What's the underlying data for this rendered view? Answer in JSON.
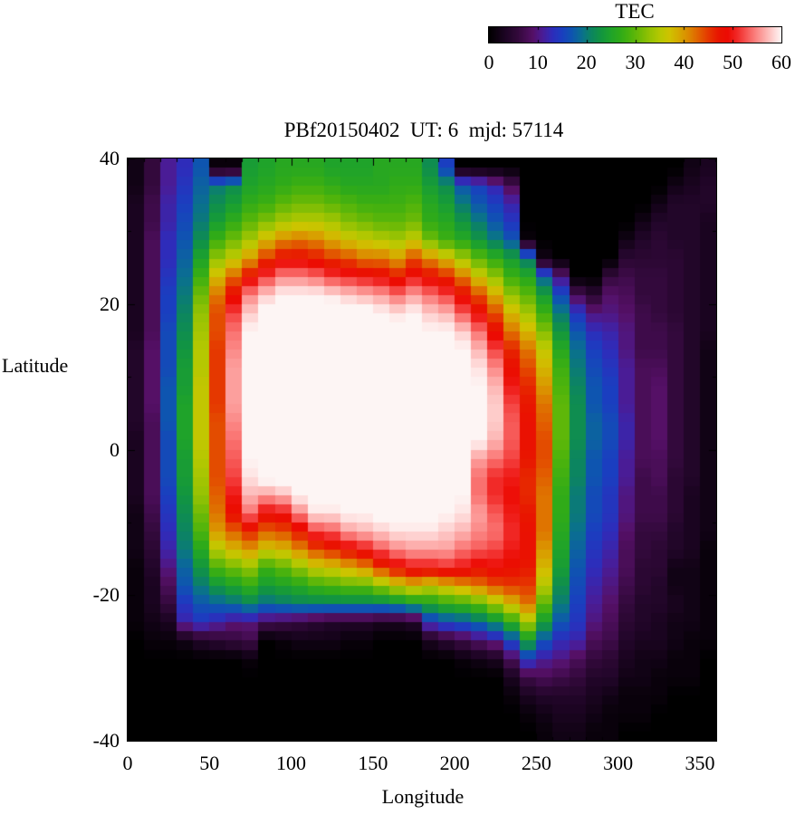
{
  "plot": {
    "title": "PBf20150402  UT: 6  mjd: 57114"
  },
  "colorbar": {
    "title": "TEC",
    "min": 0,
    "max": 60,
    "tick_values": [
      0,
      10,
      20,
      30,
      40,
      50,
      60
    ]
  },
  "axes": {
    "x": {
      "label": "Longitude",
      "min": 0,
      "max": 360,
      "major_ticks": [
        0,
        50,
        100,
        150,
        200,
        250,
        300,
        350
      ],
      "minor_step": 10
    },
    "y": {
      "label": "Latitude",
      "min": -40,
      "max": 40,
      "major_ticks": [
        40,
        20,
        0,
        -20,
        -40
      ],
      "minor_step": 10
    }
  },
  "chart_data": {
    "type": "heatmap",
    "title": "PBf20150402  UT: 6  mjd: 57114",
    "xlabel": "Longitude",
    "ylabel": "Latitude",
    "colorbar_label": "TEC",
    "x_range": [
      0,
      360
    ],
    "y_range": [
      -40,
      40
    ],
    "value_range": [
      0,
      60
    ],
    "lon_cell_deg": 10,
    "lat_cell_deg": 2.5,
    "grid_order": "rows from north (+40) to south (-40); columns from lon 0 to 360",
    "values": [
      [
        2,
        6,
        11,
        13,
        17,
        1,
        1,
        24,
        25,
        26,
        26,
        26,
        25,
        25,
        25,
        26,
        26,
        26,
        22,
        15,
        0,
        0,
        0,
        0,
        0,
        0,
        0,
        0,
        0,
        0,
        0,
        0,
        0,
        0,
        2,
        3
      ],
      [
        2,
        6,
        11,
        14,
        18,
        20,
        22,
        25,
        26,
        27,
        28,
        28,
        27,
        26,
        26,
        26,
        27,
        27,
        24,
        22,
        17,
        15,
        12,
        8,
        0,
        0,
        0,
        0,
        0,
        0,
        0,
        0,
        0,
        2,
        3,
        4
      ],
      [
        3,
        7,
        12,
        15,
        19,
        22,
        24,
        27,
        28,
        30,
        31,
        31,
        30,
        29,
        28,
        28,
        28,
        29,
        26,
        24,
        20,
        17,
        15,
        12,
        0,
        0,
        0,
        0,
        0,
        0,
        0,
        0,
        2,
        4,
        4,
        4
      ],
      [
        3,
        7,
        12,
        16,
        20,
        24,
        27,
        30,
        32,
        34,
        35,
        35,
        34,
        32,
        31,
        30,
        30,
        31,
        27,
        26,
        23,
        20,
        17,
        14,
        0,
        0,
        0,
        0,
        0,
        0,
        0,
        2,
        4,
        4,
        4,
        3
      ],
      [
        3,
        8,
        13,
        17,
        22,
        28,
        31,
        34,
        38,
        41,
        42,
        41,
        39,
        37,
        36,
        35,
        34,
        36,
        31,
        28,
        26,
        23,
        20,
        17,
        1,
        0,
        0,
        0,
        0,
        0,
        2,
        4,
        5,
        4,
        4,
        3
      ],
      [
        3,
        8,
        13,
        18,
        25,
        33,
        36,
        40,
        45,
        48,
        48,
        47,
        45,
        44,
        42,
        42,
        40,
        44,
        41,
        38,
        34,
        30,
        27,
        24,
        20,
        2,
        0,
        0,
        0,
        0,
        5,
        5,
        5,
        5,
        4,
        3
      ],
      [
        3,
        8,
        14,
        19,
        28,
        38,
        43,
        48,
        52,
        55,
        55,
        54,
        52,
        51,
        50,
        49,
        47,
        50,
        48,
        46,
        42,
        37,
        33,
        28,
        26,
        18,
        10,
        0,
        0,
        6,
        7,
        6,
        6,
        5,
        4,
        3
      ],
      [
        3,
        8,
        15,
        20,
        31,
        42,
        48,
        55,
        58,
        60,
        60,
        60,
        59,
        58,
        57,
        56,
        54,
        56,
        54,
        52,
        48,
        44,
        39,
        33,
        30,
        24,
        16,
        8,
        5,
        9,
        8,
        6,
        6,
        5,
        4,
        3
      ],
      [
        3,
        8,
        15,
        21,
        33,
        44,
        52,
        58,
        61,
        62,
        62,
        62,
        62,
        61,
        61,
        60,
        59,
        60,
        58,
        57,
        53,
        49,
        44,
        38,
        34,
        28,
        20,
        14,
        10,
        10,
        9,
        7,
        6,
        5,
        4,
        3
      ],
      [
        3,
        8,
        16,
        22,
        34,
        44,
        54,
        60,
        62,
        63,
        63,
        63,
        63,
        63,
        62,
        62,
        61,
        61,
        60,
        60,
        58,
        54,
        48,
        42,
        38,
        32,
        23,
        17,
        13,
        12,
        10,
        7,
        7,
        6,
        4,
        3
      ],
      [
        4,
        9,
        16,
        23,
        35,
        45,
        55,
        61,
        62,
        63,
        63,
        63,
        63,
        63,
        63,
        62,
        62,
        62,
        61,
        61,
        60,
        57,
        52,
        46,
        42,
        36,
        26,
        19,
        15,
        13,
        10,
        7,
        7,
        6,
        4,
        2
      ],
      [
        4,
        9,
        16,
        24,
        35,
        45,
        56,
        62,
        63,
        63,
        64,
        64,
        64,
        63,
        63,
        63,
        62,
        62,
        62,
        61,
        61,
        59,
        55,
        48,
        44,
        38,
        28,
        20,
        16,
        14,
        11,
        8,
        8,
        6,
        4,
        2
      ],
      [
        4,
        9,
        17,
        24,
        36,
        45,
        56,
        62,
        63,
        63,
        64,
        64,
        64,
        64,
        63,
        63,
        63,
        62,
        62,
        62,
        61,
        60,
        57,
        50,
        46,
        40,
        29,
        21,
        17,
        15,
        11,
        8,
        9,
        6,
        4,
        2
      ],
      [
        4,
        9,
        17,
        25,
        36,
        45,
        56,
        62,
        63,
        63,
        64,
        64,
        64,
        64,
        64,
        63,
        63,
        63,
        62,
        62,
        61,
        61,
        58,
        52,
        47,
        42,
        30,
        22,
        17,
        15,
        11,
        8,
        9,
        6,
        4,
        2
      ],
      [
        4,
        8,
        17,
        25,
        36,
        44,
        55,
        62,
        63,
        63,
        64,
        64,
        64,
        64,
        64,
        64,
        63,
        63,
        62,
        62,
        61,
        61,
        58,
        53,
        48,
        43,
        30,
        22,
        18,
        16,
        12,
        8,
        9,
        6,
        4,
        2
      ],
      [
        3,
        8,
        16,
        25,
        36,
        44,
        54,
        61,
        62,
        63,
        63,
        64,
        64,
        64,
        64,
        64,
        63,
        63,
        63,
        62,
        61,
        60,
        57,
        53,
        48,
        44,
        30,
        22,
        18,
        16,
        12,
        8,
        9,
        6,
        4,
        2
      ],
      [
        3,
        8,
        16,
        24,
        35,
        44,
        53,
        60,
        62,
        62,
        63,
        63,
        63,
        63,
        63,
        63,
        63,
        63,
        62,
        62,
        61,
        56,
        54,
        52,
        47,
        44,
        29,
        21,
        17,
        15,
        11,
        8,
        8,
        6,
        4,
        2
      ],
      [
        3,
        8,
        16,
        24,
        34,
        44,
        52,
        59,
        61,
        62,
        62,
        63,
        63,
        63,
        63,
        63,
        62,
        62,
        62,
        62,
        61,
        54,
        51,
        50,
        46,
        43,
        28,
        21,
        17,
        15,
        11,
        7,
        8,
        5,
        4,
        2
      ],
      [
        3,
        8,
        15,
        23,
        33,
        43,
        50,
        57,
        56,
        57,
        60,
        61,
        61,
        62,
        62,
        62,
        62,
        62,
        62,
        61,
        60,
        54,
        51,
        49,
        46,
        42,
        27,
        20,
        16,
        14,
        10,
        7,
        7,
        5,
        3,
        2
      ],
      [
        2,
        7,
        14,
        22,
        31,
        42,
        48,
        54,
        49,
        50,
        55,
        59,
        59,
        60,
        60,
        61,
        61,
        61,
        61,
        60,
        59,
        56,
        53,
        50,
        47,
        42,
        27,
        20,
        16,
        14,
        10,
        7,
        7,
        5,
        3,
        2
      ],
      [
        2,
        6,
        13,
        21,
        29,
        40,
        43,
        46,
        43,
        44,
        47,
        52,
        53,
        56,
        57,
        58,
        59,
        59,
        59,
        58,
        57,
        55,
        54,
        51,
        48,
        42,
        26,
        19,
        15,
        13,
        9,
        6,
        6,
        4,
        3,
        2
      ],
      [
        2,
        5,
        12,
        20,
        26,
        35,
        38,
        40,
        37,
        38,
        41,
        44,
        46,
        48,
        50,
        53,
        55,
        56,
        56,
        56,
        54,
        53,
        52,
        50,
        48,
        40,
        25,
        18,
        14,
        12,
        8,
        6,
        5,
        4,
        3,
        1
      ],
      [
        1,
        4,
        10,
        18,
        23,
        29,
        31,
        33,
        28,
        30,
        33,
        36,
        37,
        39,
        41,
        45,
        48,
        50,
        50,
        51,
        50,
        48,
        49,
        48,
        47,
        38,
        24,
        17,
        13,
        11,
        8,
        5,
        5,
        2,
        2,
        1
      ],
      [
        1,
        3,
        8,
        17,
        20,
        23,
        25,
        27,
        24,
        25,
        26,
        28,
        29,
        30,
        30,
        33,
        36,
        38,
        36,
        38,
        40,
        42,
        44,
        45,
        45,
        35,
        22,
        16,
        12,
        10,
        7,
        5,
        4,
        2,
        2,
        1
      ],
      [
        1,
        3,
        6,
        14,
        17,
        18,
        19,
        21,
        19,
        20,
        21,
        21,
        21,
        21,
        21,
        21,
        22,
        24,
        25,
        27,
        28,
        30,
        34,
        38,
        42,
        30,
        20,
        15,
        11,
        9,
        6,
        4,
        4,
        3,
        2,
        1
      ],
      [
        1,
        2,
        3,
        12,
        14,
        12,
        10,
        10,
        8,
        7,
        6,
        5,
        4,
        4,
        4,
        3,
        3,
        4,
        14,
        16,
        17,
        19,
        22,
        27,
        34,
        24,
        17,
        14,
        10,
        8,
        5,
        4,
        3,
        2,
        2,
        1
      ],
      [
        0,
        1,
        1,
        2,
        4,
        5,
        6,
        7,
        0,
        1,
        2,
        2,
        2,
        1,
        1,
        0,
        0,
        0,
        3,
        5,
        7,
        9,
        11,
        16,
        24,
        17,
        13,
        12,
        8,
        7,
        4,
        3,
        3,
        2,
        1,
        1
      ],
      [
        0,
        0,
        0,
        0,
        0,
        0,
        0,
        1,
        0,
        0,
        0,
        0,
        0,
        0,
        0,
        0,
        0,
        0,
        0,
        0,
        1,
        2,
        3,
        8,
        14,
        11,
        10,
        8,
        6,
        5,
        3,
        2,
        2,
        1,
        1,
        0
      ],
      [
        0,
        0,
        0,
        0,
        0,
        0,
        0,
        0,
        0,
        0,
        0,
        0,
        0,
        0,
        0,
        0,
        0,
        0,
        0,
        0,
        0,
        0,
        0,
        3,
        7,
        8,
        7,
        6,
        4,
        4,
        2,
        2,
        1,
        1,
        1,
        0
      ],
      [
        0,
        0,
        0,
        0,
        0,
        0,
        0,
        0,
        0,
        0,
        0,
        0,
        0,
        0,
        0,
        0,
        0,
        0,
        0,
        0,
        0,
        0,
        0,
        1,
        3,
        4,
        4,
        4,
        3,
        2,
        1,
        1,
        1,
        0,
        0,
        0
      ],
      [
        0,
        0,
        0,
        0,
        0,
        0,
        0,
        0,
        0,
        0,
        0,
        0,
        0,
        0,
        0,
        0,
        0,
        0,
        0,
        0,
        0,
        0,
        0,
        0,
        1,
        2,
        3,
        3,
        2,
        1,
        1,
        1,
        0,
        0,
        0,
        0
      ],
      [
        0,
        0,
        0,
        0,
        0,
        0,
        0,
        0,
        0,
        0,
        0,
        0,
        0,
        0,
        0,
        0,
        0,
        0,
        0,
        0,
        0,
        0,
        0,
        0,
        0,
        1,
        2,
        2,
        1,
        1,
        0,
        0,
        0,
        0,
        0,
        0
      ]
    ],
    "palette_stops": [
      [
        0,
        "#000000"
      ],
      [
        3,
        "#1a0420"
      ],
      [
        6,
        "#33093c"
      ],
      [
        9,
        "#551066"
      ],
      [
        11,
        "#4a1c96"
      ],
      [
        13,
        "#2e2cba"
      ],
      [
        15,
        "#1a3ec0"
      ],
      [
        17,
        "#0e55b0"
      ],
      [
        19,
        "#0a6f90"
      ],
      [
        21,
        "#0c8560"
      ],
      [
        23,
        "#129540"
      ],
      [
        25,
        "#1fa32a"
      ],
      [
        27,
        "#30ab18"
      ],
      [
        29,
        "#4cb30c"
      ],
      [
        31,
        "#6fba06"
      ],
      [
        33,
        "#95c203"
      ],
      [
        35,
        "#b5c801"
      ],
      [
        37,
        "#cfc300"
      ],
      [
        39,
        "#d6a800"
      ],
      [
        41,
        "#dc8800"
      ],
      [
        43,
        "#e16000"
      ],
      [
        45,
        "#e53800"
      ],
      [
        47,
        "#e81600"
      ],
      [
        49,
        "#ec0b03"
      ],
      [
        51,
        "#f12a28"
      ],
      [
        53,
        "#f75a58"
      ],
      [
        55,
        "#fb8886"
      ],
      [
        57,
        "#fdb5b3"
      ],
      [
        59,
        "#fee2e1"
      ],
      [
        60,
        "#fdf5f4"
      ]
    ],
    "saturation_note": "interior values above 60 render as the near-white top color"
  }
}
